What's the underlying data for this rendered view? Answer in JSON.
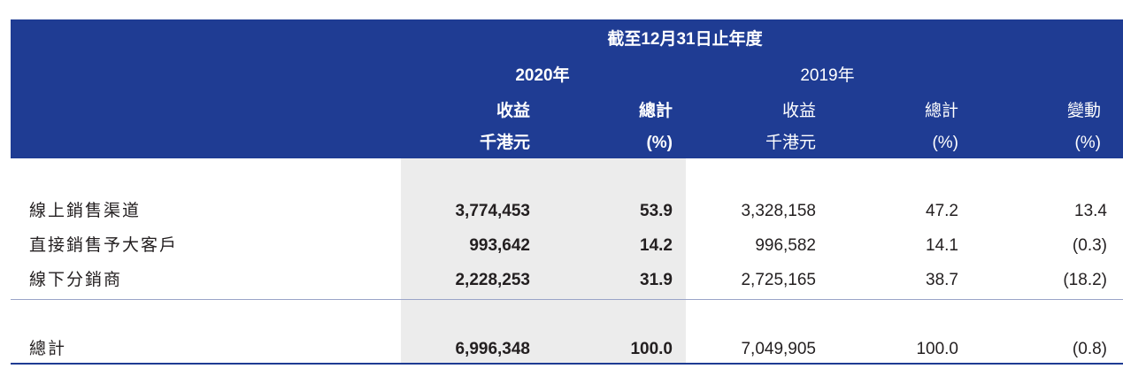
{
  "header": {
    "period": "截至12月31日止年度",
    "year_current": "2020年",
    "year_prior": "2019年",
    "col_revenue": "收益",
    "col_total": "總計",
    "col_change": "變動",
    "unit_revenue": "千港元",
    "unit_percent": "(%)"
  },
  "rows": [
    {
      "label": "線上銷售渠道",
      "rev_2020": "3,774,453",
      "pct_2020": "53.9",
      "rev_2019": "3,328,158",
      "pct_2019": "47.2",
      "change": "13.4"
    },
    {
      "label": "直接銷售予大客戶",
      "rev_2020": "993,642",
      "pct_2020": "14.2",
      "rev_2019": "996,582",
      "pct_2019": "14.1",
      "change": "(0.3)"
    },
    {
      "label": "線下分銷商",
      "rev_2020": "2,228,253",
      "pct_2020": "31.9",
      "rev_2019": "2,725,165",
      "pct_2019": "38.7",
      "change": "(18.2)"
    }
  ],
  "total": {
    "label": "總計",
    "rev_2020": "6,996,348",
    "pct_2020": "100.0",
    "rev_2019": "7,049,905",
    "pct_2019": "100.0",
    "change": "(0.8)"
  },
  "colors": {
    "header_bg": "#1f3c93",
    "shade_bg": "#ececec",
    "text": "#231f20"
  }
}
